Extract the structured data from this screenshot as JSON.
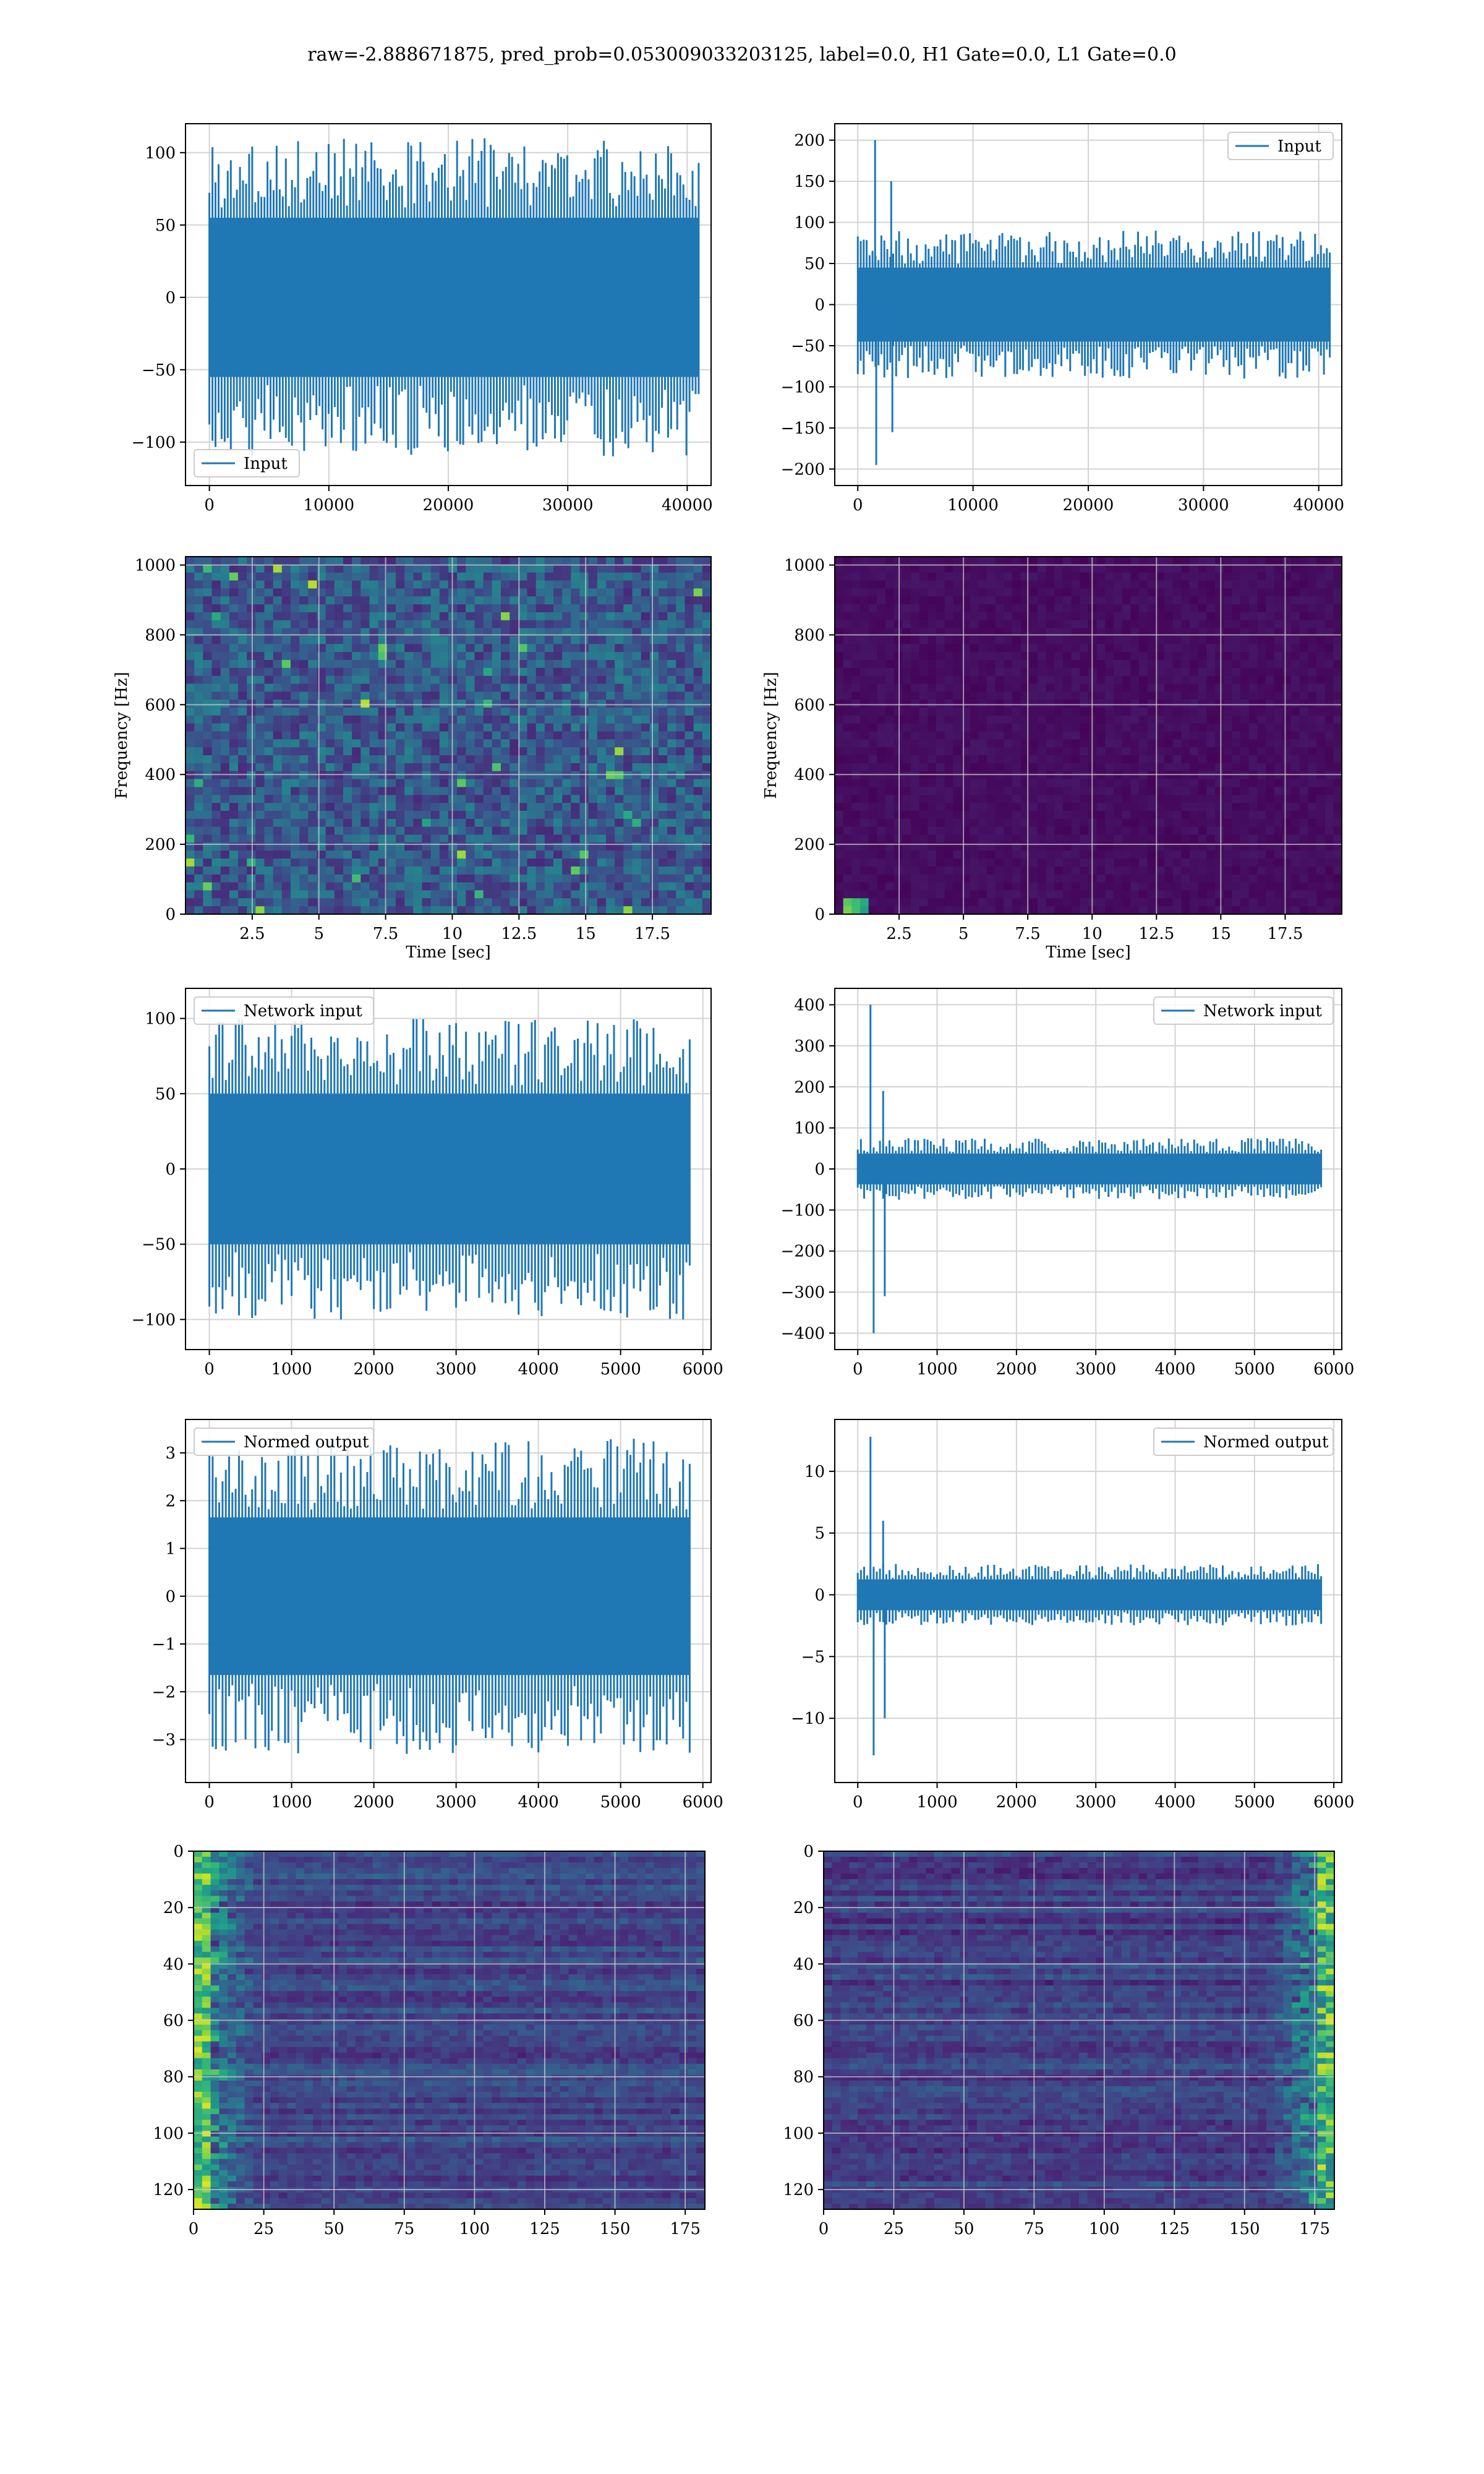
{
  "figure": {
    "suptitle": "raw=-2.888671875, pred_prob=0.053009033203125, label=0.0, H1 Gate=0.0, L1 Gate=0.0",
    "line_color": "#1f77b4"
  },
  "chart_data": [
    {
      "type": "line",
      "legend": "Input",
      "legend_loc": "lower-left",
      "xlim": [
        -2000,
        42000
      ],
      "ylim": [
        -130,
        120
      ],
      "xticks": [
        0,
        10000,
        20000,
        30000,
        40000
      ],
      "yticks": [
        -100,
        -50,
        0,
        50,
        100
      ],
      "series": [
        {
          "x_range": [
            0,
            40960
          ],
          "x_step": 256,
          "amplitude": 110,
          "n_points": 161,
          "values": []
        }
      ]
    },
    {
      "type": "line",
      "legend": "Input",
      "legend_loc": "top-right",
      "xlim": [
        -2000,
        42000
      ],
      "ylim": [
        -220,
        220
      ],
      "xticks": [
        0,
        10000,
        20000,
        30000,
        40000
      ],
      "yticks": [
        -200,
        -150,
        -100,
        -50,
        0,
        50,
        100,
        150,
        200
      ],
      "series": [
        {
          "x_range": [
            0,
            40960
          ],
          "x_step": 256,
          "amplitude": 90,
          "n_points": 161,
          "glitches": [
            {
              "x": 1500,
              "y": 200
            },
            {
              "x": 1600,
              "y": -195
            },
            {
              "x": 2900,
              "y": 150
            },
            {
              "x": 3000,
              "y": -155
            }
          ],
          "values": []
        }
      ]
    },
    {
      "type": "heatmap",
      "xlabel": "Time [sec]",
      "ylabel": "Frequency [Hz]",
      "xlim": [
        0,
        19.7
      ],
      "ylim": [
        0,
        1024
      ],
      "xticks": [
        2.5,
        5.0,
        7.5,
        10.0,
        12.5,
        15.0,
        17.5
      ],
      "yticks": [
        0,
        200,
        400,
        600,
        800,
        1000
      ],
      "colormap": "viridis",
      "description_level": "noisy uniform"
    },
    {
      "type": "heatmap",
      "xlabel": "Time [sec]",
      "ylabel": "Frequency [Hz]",
      "xlim": [
        0,
        19.7
      ],
      "ylim": [
        0,
        1024
      ],
      "xticks": [
        2.5,
        5.0,
        7.5,
        10.0,
        12.5,
        15.0,
        17.5
      ],
      "yticks": [
        0,
        200,
        400,
        600,
        800,
        1000
      ],
      "colormap": "viridis",
      "description_level": "dark with bright spots near t=1.2"
    },
    {
      "type": "line",
      "legend": "Network input",
      "legend_loc": "top-left",
      "xlim": [
        -290,
        6100
      ],
      "ylim": [
        -120,
        120
      ],
      "xticks": [
        0,
        1000,
        2000,
        3000,
        4000,
        5000,
        6000
      ],
      "yticks": [
        -100,
        -50,
        0,
        50,
        100
      ],
      "series": [
        {
          "x_range": [
            0,
            5840
          ],
          "x_step": 40,
          "amplitude": 100,
          "n_points": 147,
          "values": []
        }
      ]
    },
    {
      "type": "line",
      "legend": "Network input",
      "legend_loc": "top-right",
      "xlim": [
        -290,
        6100
      ],
      "ylim": [
        -440,
        440
      ],
      "xticks": [
        0,
        1000,
        2000,
        3000,
        4000,
        5000,
        6000
      ],
      "yticks": [
        -400,
        -300,
        -200,
        -100,
        0,
        100,
        200,
        300,
        400
      ],
      "series": [
        {
          "x_range": [
            0,
            5840
          ],
          "x_step": 40,
          "amplitude": 75,
          "n_points": 147,
          "glitches": [
            {
              "x": 160,
              "y": 400
            },
            {
              "x": 200,
              "y": -400
            },
            {
              "x": 320,
              "y": 190
            },
            {
              "x": 340,
              "y": -310
            }
          ],
          "values": []
        }
      ]
    },
    {
      "type": "line",
      "legend": "Normed output",
      "legend_loc": "top-left",
      "xlim": [
        -290,
        6100
      ],
      "ylim": [
        -3.9,
        3.7
      ],
      "xticks": [
        0,
        1000,
        2000,
        3000,
        4000,
        5000,
        6000
      ],
      "yticks": [
        -3,
        -2,
        -1,
        0,
        1,
        2,
        3
      ],
      "series": [
        {
          "x_range": [
            0,
            5840
          ],
          "x_step": 40,
          "amplitude": 3.3,
          "n_points": 147,
          "values": []
        }
      ]
    },
    {
      "type": "line",
      "legend": "Normed output",
      "legend_loc": "top-right",
      "xlim": [
        -290,
        6100
      ],
      "ylim": [
        -15.2,
        14.2
      ],
      "xticks": [
        0,
        1000,
        2000,
        3000,
        4000,
        5000,
        6000
      ],
      "yticks": [
        -10,
        -5,
        0,
        5,
        10
      ],
      "series": [
        {
          "x_range": [
            0,
            5840
          ],
          "x_step": 40,
          "amplitude": 2.5,
          "n_points": 147,
          "glitches": [
            {
              "x": 160,
              "y": 12.8
            },
            {
              "x": 200,
              "y": -13
            },
            {
              "x": 320,
              "y": 6
            },
            {
              "x": 340,
              "y": -10
            }
          ],
          "values": []
        }
      ]
    },
    {
      "type": "heatmap",
      "xlim": [
        0,
        182
      ],
      "ylim": [
        127,
        0
      ],
      "xticks": [
        0,
        25,
        50,
        75,
        100,
        125,
        150,
        175
      ],
      "yticks": [
        0,
        20,
        40,
        60,
        80,
        100,
        120
      ],
      "colormap": "viridis",
      "description_level": "bright left edge"
    },
    {
      "type": "heatmap",
      "xlim": [
        0,
        182
      ],
      "ylim": [
        127,
        0
      ],
      "xticks": [
        0,
        25,
        50,
        75,
        100,
        125,
        150,
        175
      ],
      "yticks": [
        0,
        20,
        40,
        60,
        80,
        100,
        120
      ],
      "colormap": "viridis",
      "description_level": "bright right edge"
    }
  ]
}
